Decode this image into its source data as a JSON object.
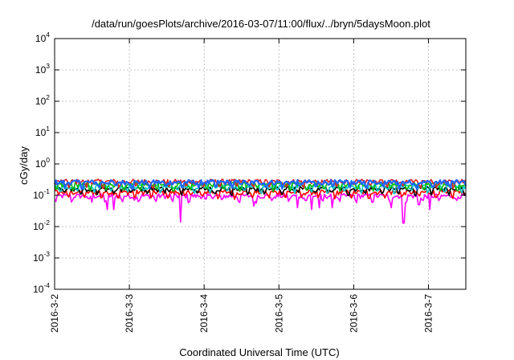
{
  "chart_data": {
    "type": "line",
    "title": "/data/run/goesPlots/archive/2016-03-07/11:00/flux/../bryn/5daysMoon.plot",
    "xlabel": "Coordinated Universal Time (UTC)",
    "ylabel": "cGy/day",
    "yscale": "log",
    "ylim": [
      0.0001,
      10000
    ],
    "yticks": [
      {
        "base": "10",
        "exp": "-4",
        "value": 0.0001
      },
      {
        "base": "10",
        "exp": "-3",
        "value": 0.001
      },
      {
        "base": "10",
        "exp": "-2",
        "value": 0.01
      },
      {
        "base": "10",
        "exp": "-1",
        "value": 0.1
      },
      {
        "base": "10",
        "exp": "0",
        "value": 1
      },
      {
        "base": "10",
        "exp": "1",
        "value": 10
      },
      {
        "base": "10",
        "exp": "2",
        "value": 100
      },
      {
        "base": "10",
        "exp": "3",
        "value": 1000
      },
      {
        "base": "10",
        "exp": "4",
        "value": 10000
      }
    ],
    "xlim": [
      "2016-03-02",
      "2016-03-07 12:00"
    ],
    "xticks": [
      "2016-3-2",
      "2016-3-3",
      "2016-3-4",
      "2016-3-5",
      "2016-3-6",
      "2016-3-7"
    ],
    "grid": true,
    "series": [
      {
        "color": "#ff00ff",
        "base": 0.095,
        "spikes": [
          {
            "x": "2016-03-02 12:00",
            "y": 0.06
          },
          {
            "x": "2016-03-02 17:00",
            "y": 0.035
          },
          {
            "x": "2016-03-02 19:00",
            "y": 0.035
          },
          {
            "x": "2016-03-03 01:30",
            "y": 0.07
          },
          {
            "x": "2016-03-03 16:30",
            "y": 0.014
          },
          {
            "x": "2016-03-04 16:00",
            "y": 0.045
          },
          {
            "x": "2016-03-05 06:00",
            "y": 0.04
          },
          {
            "x": "2016-03-05 10:30",
            "y": 0.035
          },
          {
            "x": "2016-03-05 13:00",
            "y": 0.04
          },
          {
            "x": "2016-03-05 17:00",
            "y": 0.04
          },
          {
            "x": "2016-03-06 12:00",
            "y": 0.04
          },
          {
            "x": "2016-03-06 16:00",
            "y": 0.013
          },
          {
            "x": "2016-03-06 21:00",
            "y": 0.05
          },
          {
            "x": "2016-03-07 00:30",
            "y": 0.035
          }
        ]
      },
      {
        "color": "#ff0000",
        "base": 0.125
      },
      {
        "color": "#000000",
        "base": 0.16
      },
      {
        "color": "#00c8c8",
        "base": 0.19
      },
      {
        "color": "#00c000",
        "base": 0.22
      },
      {
        "color": "#e02020",
        "base": 0.275
      },
      {
        "color": "#1e64ff",
        "base": 0.26
      }
    ]
  }
}
